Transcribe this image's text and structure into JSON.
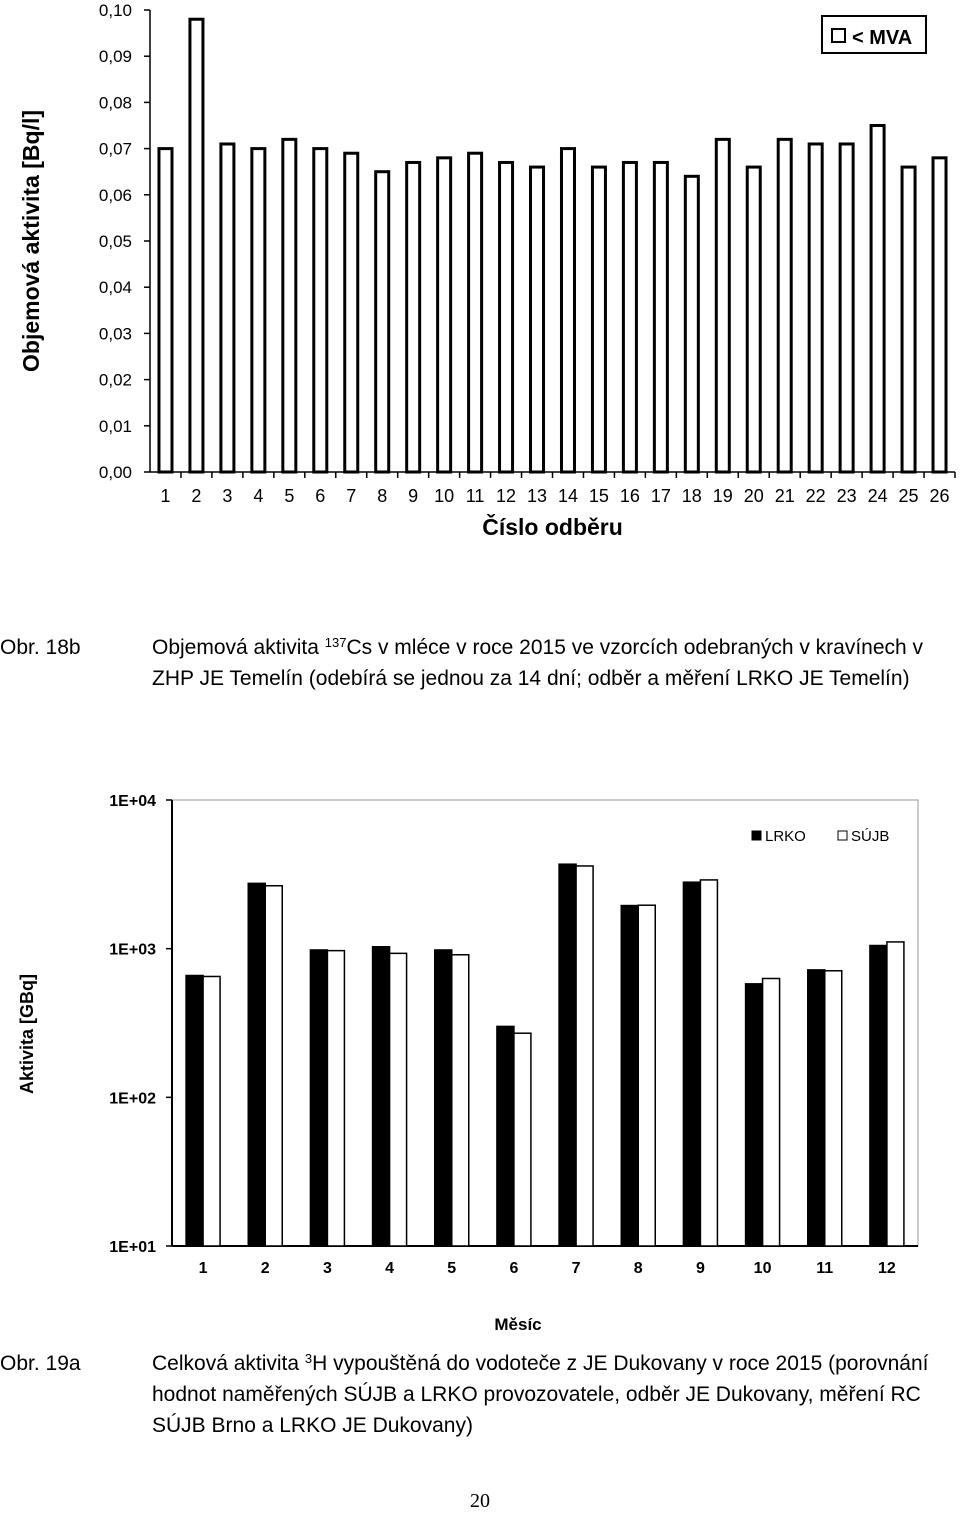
{
  "charts": [
    {
      "type": "bar",
      "ylabel": "Objemová aktivita [Bq/l]",
      "xlabel": "Číslo odběru",
      "categories": [
        "1",
        "2",
        "3",
        "4",
        "5",
        "6",
        "7",
        "8",
        "9",
        "10",
        "11",
        "12",
        "13",
        "14",
        "15",
        "16",
        "17",
        "18",
        "19",
        "20",
        "21",
        "22",
        "23",
        "24",
        "25",
        "26"
      ],
      "ylim": [
        0,
        0.1
      ],
      "y_ticks": [
        "0,00",
        "0,01",
        "0,02",
        "0,03",
        "0,04",
        "0,05",
        "0,06",
        "0,07",
        "0,08",
        "0,09",
        "0,10"
      ],
      "series": [
        {
          "name": "< MVA",
          "color": "#ffffff",
          "values": [
            0.07,
            0.098,
            0.071,
            0.07,
            0.072,
            0.07,
            0.069,
            0.065,
            0.067,
            0.068,
            0.069,
            0.067,
            0.066,
            0.07,
            0.066,
            0.067,
            0.067,
            0.064,
            0.072,
            0.066,
            0.072,
            0.071,
            0.071,
            0.075,
            0.066,
            0.068
          ]
        }
      ],
      "legend": "top-right",
      "grid": false
    },
    {
      "type": "bar",
      "ylabel": "Aktivita [GBq]",
      "xlabel": "Měsíc",
      "scale": "log",
      "categories": [
        "1",
        "2",
        "3",
        "4",
        "5",
        "6",
        "7",
        "8",
        "9",
        "10",
        "11",
        "12"
      ],
      "ylim": [
        10,
        10000
      ],
      "y_ticks": [
        "1E+01",
        "1E+02",
        "1E+03",
        "1E+04"
      ],
      "series": [
        {
          "name": "LRKO",
          "color": "#000000",
          "values": [
            660,
            2750,
            980,
            1030,
            980,
            300,
            3700,
            1950,
            2800,
            580,
            720,
            1050
          ]
        },
        {
          "name": "SÚJB",
          "color": "#ffffff",
          "values": [
            650,
            2650,
            970,
            930,
            910,
            270,
            3600,
            1960,
            2900,
            630,
            710,
            1110
          ]
        }
      ],
      "legend": "top-right",
      "grid": false
    }
  ],
  "chart_data": [
    {
      "type": "bar",
      "ylabel": "Objemová aktivita [Bq/l]",
      "xlabel": "Číslo odběru",
      "categories": [
        "1",
        "2",
        "3",
        "4",
        "5",
        "6",
        "7",
        "8",
        "9",
        "10",
        "11",
        "12",
        "13",
        "14",
        "15",
        "16",
        "17",
        "18",
        "19",
        "20",
        "21",
        "22",
        "23",
        "24",
        "25",
        "26"
      ],
      "ylim": [
        0,
        0.1
      ],
      "series": [
        {
          "name": "< MVA",
          "values": [
            0.07,
            0.098,
            0.071,
            0.07,
            0.072,
            0.07,
            0.069,
            0.065,
            0.067,
            0.068,
            0.069,
            0.067,
            0.066,
            0.07,
            0.066,
            0.067,
            0.067,
            0.064,
            0.072,
            0.066,
            0.072,
            0.071,
            0.071,
            0.075,
            0.066,
            0.068
          ]
        }
      ]
    },
    {
      "type": "bar",
      "ylabel": "Aktivita [GBq]",
      "xlabel": "Měsíc",
      "scale": "log",
      "categories": [
        "1",
        "2",
        "3",
        "4",
        "5",
        "6",
        "7",
        "8",
        "9",
        "10",
        "11",
        "12"
      ],
      "ylim": [
        10,
        10000
      ],
      "series": [
        {
          "name": "LRKO",
          "values": [
            660,
            2750,
            980,
            1030,
            980,
            300,
            3700,
            1950,
            2800,
            580,
            720,
            1050
          ]
        },
        {
          "name": "SÚJB",
          "values": [
            650,
            2650,
            970,
            930,
            910,
            270,
            3600,
            1960,
            2900,
            630,
            710,
            1110
          ]
        }
      ]
    }
  ],
  "captions": {
    "fig18b": {
      "label": "Obr. 18b",
      "pre": "Objemová aktivita ",
      "sup": "137",
      "post": "Cs v mléce v roce 2015 ve vzorcích odebraných v kravínech v ZHP JE Temelín (odebírá se jednou za 14 dní; odběr a měření LRKO JE Temelín)"
    },
    "fig19a": {
      "label": "Obr. 19a",
      "pre": "Celková aktivita ",
      "sup": "3",
      "post": "H vypouštěná do vodoteče z JE Dukovany v roce 2015 (porovnání hodnot naměřených SÚJB a LRKO provozovatele, odběr JE Dukovany, měření RC SÚJB Brno a LRKO JE Dukovany)"
    }
  },
  "page_number": "20"
}
